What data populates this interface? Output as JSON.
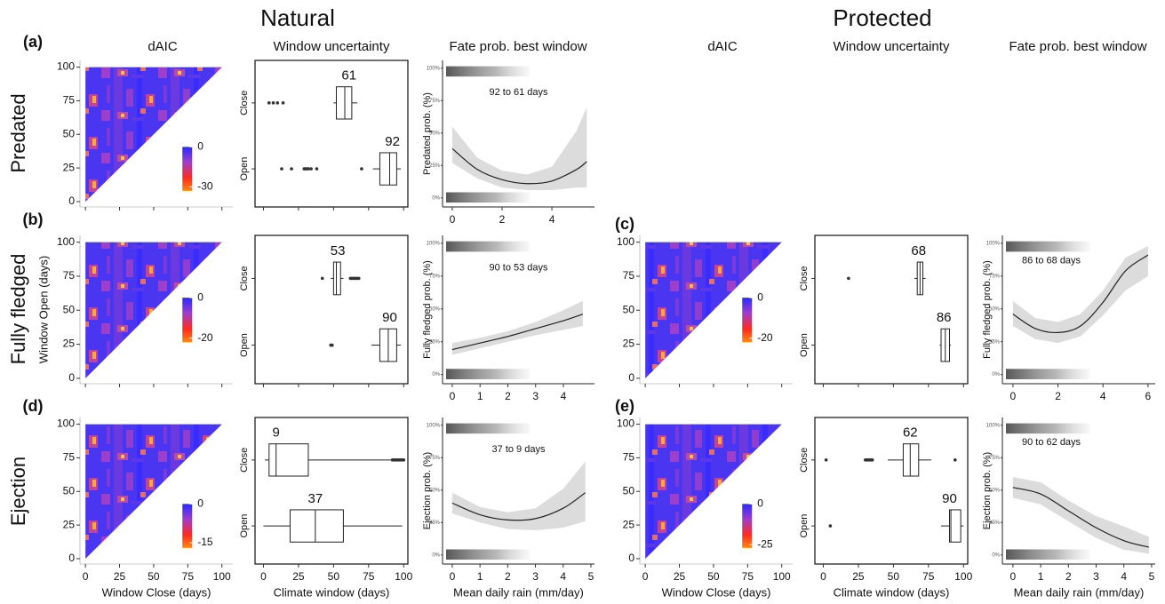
{
  "titles": {
    "natural": "Natural",
    "protected": "Protected"
  },
  "column_titles": [
    "dAIC",
    "Window uncertainty",
    "Fate prob. best window"
  ],
  "rows": [
    "Predated",
    "Fully fledged",
    "Ejection"
  ],
  "panels": [
    "(a)",
    "(b)",
    "(c)",
    "(d)",
    "(e)"
  ],
  "chart_data": [
    {
      "type": "heatmap",
      "xlim": [
        -4,
        108
      ],
      "ylim": [
        -4,
        105
      ],
      "xticks": [
        0,
        25,
        50,
        75,
        100
      ],
      "yticks": [
        0,
        25,
        50,
        75,
        100
      ],
      "xtick_labels": false,
      "colorbar": {
        "lim": [
          -33,
          0
        ],
        "ticks": [
          0,
          -30
        ]
      }
    },
    {
      "type": "box",
      "categories": [
        "Close",
        "Open"
      ],
      "xlim": [
        -6,
        103
      ],
      "xticks": [
        0,
        25,
        50,
        75,
        100
      ],
      "xtick_labels": false,
      "best": [
        61,
        92
      ],
      "boxes": [
        {
          "whisker_low": 50,
          "q1": 52,
          "median": 58,
          "q3": 63,
          "whisker_high": 67,
          "outliers": [
            4,
            7,
            10,
            14
          ]
        },
        {
          "whisker_low": 78,
          "q1": 83,
          "median": 90,
          "q3": 95,
          "whisker_high": 98,
          "outliers": [
            13,
            20,
            29,
            30,
            31,
            32,
            34,
            38,
            70
          ]
        }
      ]
    },
    {
      "type": "line",
      "xlim": [
        -0.39,
        5.71
      ],
      "ylim": [
        -7,
        106
      ],
      "xticks": [
        0,
        2,
        4
      ],
      "yticks": [
        {
          "value": 0,
          "label": "0%"
        },
        {
          "value": 25,
          "label": "25%"
        },
        {
          "value": 50,
          "label": "50%"
        },
        {
          "value": 75,
          "label": "75%"
        },
        {
          "value": 100,
          "label": "100%"
        }
      ],
      "ylabel": "Predated prob. (%)",
      "annotation": "92 to 61 days",
      "x": [
        0,
        1,
        2,
        3,
        4,
        5,
        5.4
      ],
      "values": [
        38,
        22,
        14,
        11,
        13,
        22,
        28
      ],
      "lower": [
        27,
        15,
        8,
        6,
        6,
        8,
        8
      ],
      "upper": [
        55,
        31,
        21,
        18,
        24,
        52,
        70
      ]
    },
    {
      "type": "heatmap",
      "xlim": [
        -4,
        108
      ],
      "ylim": [
        -4,
        105
      ],
      "xticks": [
        0,
        25,
        50,
        75,
        100
      ],
      "yticks": [
        0,
        25,
        50,
        75,
        100
      ],
      "xtick_labels": false,
      "ylabel": "Window Open (days)",
      "colorbar": {
        "lim": [
          -22,
          0
        ],
        "ticks": [
          0,
          -20
        ]
      }
    },
    {
      "type": "box",
      "categories": [
        "Close",
        "Open"
      ],
      "xlim": [
        -6,
        103
      ],
      "xticks": [
        0,
        25,
        50,
        75,
        100
      ],
      "xtick_labels": false,
      "best": [
        53,
        90
      ],
      "boxes": [
        {
          "whisker_low": 48,
          "q1": 50,
          "median": 52,
          "q3": 55,
          "whisker_high": 57,
          "outliers": [
            42,
            62,
            63,
            64,
            65,
            66,
            67,
            68
          ]
        },
        {
          "whisker_low": 77,
          "q1": 83,
          "median": 89,
          "q3": 95,
          "whisker_high": 98,
          "outliers": [
            48,
            49
          ]
        }
      ]
    },
    {
      "type": "line",
      "xlim": [
        -0.35,
        5.12
      ],
      "ylim": [
        -7,
        106
      ],
      "xticks": [
        0,
        1,
        2,
        3,
        4
      ],
      "yticks": [
        {
          "value": 0,
          "label": "0%"
        },
        {
          "value": 25,
          "label": "25%"
        },
        {
          "value": 50,
          "label": "50%"
        },
        {
          "value": 75,
          "label": "75%"
        },
        {
          "value": 100,
          "label": "100%"
        }
      ],
      "ylabel": "Fully fledged prob. (%)",
      "annotation": "90 to 53 days",
      "x": [
        0,
        1,
        2,
        3,
        4,
        4.7
      ],
      "values": [
        19,
        24,
        29,
        35,
        41,
        46
      ],
      "lower": [
        15,
        20,
        25,
        30,
        34,
        37
      ],
      "upper": [
        24,
        28,
        33,
        40,
        49,
        56
      ]
    },
    {
      "type": "heatmap",
      "xlim": [
        -4,
        108
      ],
      "ylim": [
        -4,
        105
      ],
      "xticks": [
        0,
        25,
        50,
        75,
        100
      ],
      "yticks": [
        0,
        25,
        50,
        75,
        100
      ],
      "xtick_labels": false,
      "colorbar": {
        "lim": [
          -22,
          0
        ],
        "ticks": [
          0,
          -20
        ]
      }
    },
    {
      "type": "box",
      "categories": [
        "Close",
        "Open"
      ],
      "xlim": [
        -6,
        103
      ],
      "xticks": [
        0,
        25,
        50,
        75,
        100
      ],
      "xtick_labels": false,
      "best": [
        68,
        86
      ],
      "boxes": [
        {
          "whisker_low": 65,
          "q1": 67,
          "median": 69,
          "q3": 71,
          "whisker_high": 73,
          "outliers": [
            18
          ]
        },
        {
          "whisker_low": 83,
          "q1": 84,
          "median": 87,
          "q3": 90,
          "whisker_high": 91,
          "outliers": []
        }
      ]
    },
    {
      "type": "line",
      "xlim": [
        -0.47,
        6.32
      ],
      "ylim": [
        -7,
        106
      ],
      "xticks": [
        0,
        2,
        4,
        6
      ],
      "yticks": [
        {
          "value": 0,
          "label": "0%"
        },
        {
          "value": 25,
          "label": "25%"
        },
        {
          "value": 50,
          "label": "50%"
        },
        {
          "value": 75,
          "label": "75%"
        },
        {
          "value": 100,
          "label": "100%"
        }
      ],
      "ylabel": "Fully fledged prob. (%)",
      "annotation": "86 to 68 days",
      "x": [
        0,
        1,
        2,
        3,
        4,
        5,
        6
      ],
      "values": [
        46,
        35,
        32,
        37,
        55,
        79,
        91
      ],
      "lower": [
        37,
        27,
        24,
        29,
        45,
        64,
        75
      ],
      "upper": [
        56,
        43,
        40,
        46,
        64,
        89,
        98
      ]
    },
    {
      "type": "heatmap",
      "xlim": [
        -4,
        108
      ],
      "ylim": [
        -4,
        105
      ],
      "xticks": [
        0,
        25,
        50,
        75,
        100
      ],
      "yticks": [
        0,
        25,
        50,
        75,
        100
      ],
      "xtick_labels": true,
      "xlabel": "Window Close (days)",
      "colorbar": {
        "lim": [
          -17,
          0
        ],
        "ticks": [
          0,
          -15
        ]
      }
    },
    {
      "type": "box",
      "categories": [
        "Close",
        "Open"
      ],
      "xlim": [
        -6,
        103
      ],
      "xticks": [
        0,
        25,
        50,
        75,
        100
      ],
      "xtick_labels": true,
      "xlabel": "Climate window (days)",
      "best": [
        9,
        37
      ],
      "boxes": [
        {
          "whisker_low": 1,
          "q1": 4,
          "median": 9,
          "q3": 32,
          "whisker_high": 91,
          "outliers": [
            92,
            93,
            94,
            95,
            96,
            97,
            98,
            99,
            100
          ]
        },
        {
          "whisker_low": 0,
          "q1": 19,
          "median": 37,
          "q3": 57,
          "whisker_high": 99,
          "outliers": []
        }
      ]
    },
    {
      "type": "line",
      "xlim": [
        -0.35,
        5.13
      ],
      "ylim": [
        -7,
        106
      ],
      "xticks": [
        0,
        1,
        2,
        3,
        4,
        5
      ],
      "yticks": [
        {
          "value": 0,
          "label": "0%"
        },
        {
          "value": 25,
          "label": "25%"
        },
        {
          "value": 50,
          "label": "50%"
        },
        {
          "value": 75,
          "label": "75%"
        },
        {
          "value": 100,
          "label": "100%"
        }
      ],
      "ylabel": "Ejection prob. (%)",
      "annotation": "37 to 9 days",
      "xlabel": "Mean daily rain (mm/day)",
      "x": [
        0,
        1,
        2,
        3,
        4,
        4.8
      ],
      "values": [
        40,
        31,
        27,
        28,
        36,
        48
      ],
      "lower": [
        32,
        25,
        20,
        19,
        21,
        26
      ],
      "upper": [
        48,
        37,
        33,
        36,
        51,
        72
      ]
    },
    {
      "type": "heatmap",
      "xlim": [
        -4,
        108
      ],
      "ylim": [
        -4,
        105
      ],
      "xticks": [
        0,
        25,
        50,
        75,
        100
      ],
      "yticks": [
        0,
        25,
        50,
        75,
        100
      ],
      "xtick_labels": true,
      "xlabel": "Window Close (days)",
      "colorbar": {
        "lim": [
          -27,
          0
        ],
        "ticks": [
          0,
          -25
        ]
      }
    },
    {
      "type": "box",
      "categories": [
        "Close",
        "Open"
      ],
      "xlim": [
        -6,
        103
      ],
      "xticks": [
        0,
        25,
        50,
        75,
        100
      ],
      "xtick_labels": true,
      "xlabel": "Climate window (days)",
      "best": [
        62,
        90
      ],
      "boxes": [
        {
          "whisker_low": 46,
          "q1": 57,
          "median": 62,
          "q3": 68,
          "whisker_high": 77,
          "outliers": [
            2,
            30,
            31,
            32,
            33,
            34,
            35,
            94
          ]
        },
        {
          "whisker_low": 84,
          "q1": 90,
          "median": 91,
          "q3": 98,
          "whisker_high": 100,
          "outliers": [
            5
          ]
        }
      ]
    },
    {
      "type": "line",
      "xlim": [
        -0.38,
        5.13
      ],
      "ylim": [
        -7,
        106
      ],
      "xticks": [
        0,
        1,
        2,
        3,
        4,
        5
      ],
      "yticks": [
        {
          "value": 0,
          "label": "0%"
        },
        {
          "value": 25,
          "label": "25%"
        },
        {
          "value": 50,
          "label": "50%"
        },
        {
          "value": 75,
          "label": "75%"
        },
        {
          "value": 100,
          "label": "100%"
        }
      ],
      "ylabel": "Ejection prob. (%)",
      "annotation": "90 to 62 days",
      "xlabel": "Mean daily rain (mm/day)",
      "x": [
        0,
        1,
        2,
        3,
        4,
        4.9
      ],
      "values": [
        52,
        47,
        34,
        21,
        11,
        6
      ],
      "lower": [
        44,
        39,
        26,
        13,
        4,
        1
      ],
      "upper": [
        60,
        56,
        42,
        30,
        22,
        14
      ]
    }
  ]
}
